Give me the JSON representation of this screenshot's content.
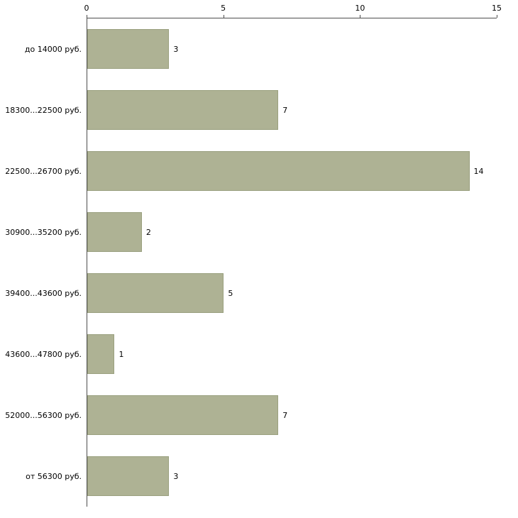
{
  "chart_data": {
    "type": "bar",
    "orientation": "horizontal",
    "title": "",
    "xlabel": "",
    "ylabel": "",
    "xlim": [
      0,
      15
    ],
    "x_ticks": [
      "0",
      "5",
      "10",
      "15"
    ],
    "x_tick_values": [
      0,
      5,
      10,
      15
    ],
    "grid": false,
    "legend": "none",
    "axis_position": "top",
    "categories": [
      "до 14000 руб.",
      "18300...22500 руб.",
      "22500...26700 руб.",
      "30900...35200 руб.",
      "39400...43600 руб.",
      "43600...47800 руб.",
      "52000...56300 руб.",
      "от 56300 руб."
    ],
    "values": [
      3,
      7,
      14,
      2,
      5,
      1,
      7,
      3
    ],
    "bar_color": "#aeb294",
    "bar_border_color": "#9aa07f",
    "axis_color": "#4d4d4d",
    "text_color": "#000000",
    "background_color": "#ffffff"
  }
}
